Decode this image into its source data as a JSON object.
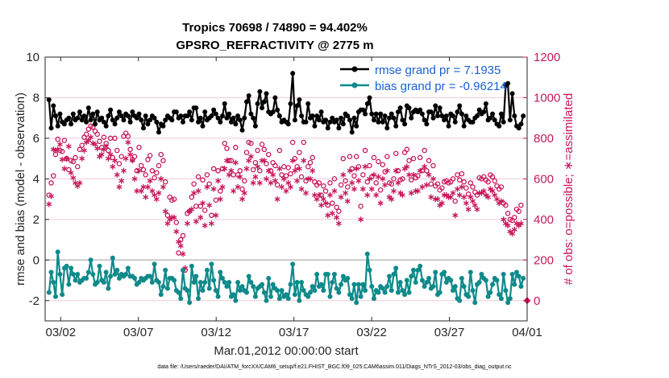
{
  "chart_data": {
    "type": "line",
    "title": "Tropics 70698 / 74890 = 94.402%",
    "subtitle": "GPSRO_REFRACTIVITY @ 2775 m",
    "xlabel": "Mar.01,2012 00:00:00 start",
    "ylabel": "rmse and bias (model - observation)",
    "y2label": "# of obs: o=possible; ∗=assimilated",
    "footnote": "data file: /Users/raeder/DAI/ATM_forcXX/CAM6_setup/f.e21.FHIST_BGC.f09_025.CAM6assim.011/Diags_NTrS_2012-03/obs_diag_output.nc",
    "xlim": [
      0,
      31
    ],
    "ylim": [
      -3,
      10
    ],
    "y2lim": [
      -100,
      1200
    ],
    "x_tick_positions": [
      1,
      6,
      11,
      16,
      21,
      26,
      31
    ],
    "x_tick_labels": [
      "03/02",
      "03/07",
      "03/12",
      "03/17",
      "03/22",
      "03/27",
      "04/01"
    ],
    "y_ticks": [
      "-2",
      "0",
      "2",
      "4",
      "6",
      "8",
      "10"
    ],
    "y2_ticks": [
      "0",
      "200",
      "400",
      "600",
      "800",
      "1000",
      "1200"
    ],
    "legend": {
      "rmse_label": "rmse grand pr = 7.1935",
      "bias_label": "bias grand pr = -0.96214",
      "position": "top-right"
    },
    "colors": {
      "rmse": "#000000",
      "bias": "#0f8a8a",
      "obs": "#c8175a",
      "zero_line": "#bdbdbd",
      "grid": "#f3c9d6"
    },
    "series": [
      {
        "name": "rmse",
        "axis": "left",
        "values": [
          7.9,
          6.5,
          7.6,
          7.1,
          6.6,
          7.2,
          6.8,
          6.7,
          6.9,
          7.0,
          6.7,
          7.2,
          6.9,
          7.0,
          7.3,
          6.9,
          7.1,
          6.8,
          7.5,
          6.9,
          7.2,
          6.7,
          7.3,
          6.9,
          7.0,
          6.8,
          6.6,
          7.1,
          7.4,
          6.9,
          6.7,
          7.0,
          7.3,
          7.1,
          6.9,
          7.2,
          7.1,
          6.8,
          7.3,
          7.1,
          7.0,
          7.2,
          6.9,
          6.5,
          7.1,
          6.7,
          6.9,
          7.1,
          7.0,
          6.8,
          6.3,
          6.7,
          6.6,
          6.9,
          7.1,
          7.0,
          6.9,
          7.3,
          7.3,
          7.0,
          7.1,
          6.8,
          7.1,
          7.1,
          7.3,
          6.9,
          7.5,
          7.5,
          6.8,
          7.0,
          6.6,
          7.3,
          6.9,
          7.0,
          7.1,
          7.4,
          7.2,
          7.0,
          6.8,
          7.1,
          7.7,
          7.0,
          7.2,
          6.8,
          7.0,
          6.7,
          7.1,
          6.9,
          6.4,
          7.0,
          7.8,
          8.1,
          7.2,
          7.0,
          6.6,
          7.7,
          8.3,
          7.5,
          7.8,
          8.2,
          7.3,
          7.2,
          7.3,
          8.0,
          7.4,
          7.1,
          6.8,
          6.9,
          6.8,
          6.7,
          7.7,
          9.2,
          6.9,
          7.6,
          7.9,
          7.1,
          6.8,
          6.8,
          7.7,
          7.0,
          7.1,
          6.6,
          7.1,
          6.9,
          7.3,
          6.8,
          6.9,
          6.5,
          6.8,
          7.0,
          6.8,
          6.9,
          6.5,
          7.0,
          6.7,
          7.2,
          7.1,
          6.9,
          6.3,
          7.0,
          6.6,
          7.3,
          7.4,
          7.4,
          7.2,
          7.7,
          8.0,
          7.2,
          6.9,
          7.2,
          6.8,
          7.2,
          6.8,
          7.1,
          6.5,
          7.0,
          7.2,
          7.0,
          6.6,
          7.3,
          7.5,
          6.9,
          6.7,
          7.6,
          7.5,
          7.0,
          7.3,
          7.4,
          7.3,
          7.4,
          7.2,
          6.9,
          6.7,
          7.3,
          7.3,
          7.0,
          7.6,
          7.1,
          7.5,
          7.1,
          6.9,
          7.1,
          6.6,
          7.2,
          7.1,
          6.8,
          7.3,
          7.6,
          7.2,
          6.6,
          7.1,
          6.9,
          6.8,
          6.8,
          7.0,
          7.1,
          7.4,
          7.2,
          7.3,
          7.7,
          6.9,
          7.0,
          7.2,
          6.9,
          6.7,
          6.6,
          7.2,
          6.8,
          8.6,
          8.7,
          6.9,
          8.2,
          7.1,
          6.6,
          6.5,
          6.7,
          7.1
        ]
      },
      {
        "name": "bias",
        "axis": "left",
        "values": [
          -1.6,
          -0.6,
          -1.1,
          -1.8,
          0.4,
          -0.7,
          -1.7,
          -0.4,
          -0.3,
          -1.2,
          -0.4,
          -0.7,
          -1.0,
          -0.7,
          -1.1,
          -1.0,
          -0.9,
          -0.9,
          -0.6,
          0.0,
          -0.7,
          -1.2,
          -1.1,
          -0.3,
          -1.0,
          -1.1,
          -0.6,
          -1.4,
          -0.8,
          0.1,
          -0.7,
          -0.5,
          -0.9,
          -0.7,
          -0.8,
          -0.7,
          -0.4,
          -0.8,
          -0.8,
          -0.9,
          -1.2,
          -1.1,
          -0.9,
          -1.0,
          -0.9,
          -0.8,
          -0.8,
          -1.1,
          -0.2,
          -1.0,
          -1.1,
          -1.7,
          -1.3,
          -0.5,
          -1.4,
          -0.9,
          -0.9,
          -1.0,
          -1.5,
          -1.6,
          -1.9,
          -0.5,
          -1.4,
          -1.5,
          -2.1,
          -0.3,
          -1.1,
          -0.8,
          -1.9,
          -1.1,
          -1.5,
          -1.1,
          -0.5,
          -1.4,
          -0.2,
          -1.0,
          -1.5,
          -1.8,
          -0.6,
          -0.9,
          -1.1,
          -1.3,
          -1.1,
          -1.8,
          -1.7,
          -2.0,
          -1.1,
          -1.5,
          -1.3,
          -1.5,
          -1.6,
          -0.8,
          -1.1,
          -1.3,
          -1.8,
          -1.4,
          -1.3,
          -1.2,
          -1.6,
          -2.0,
          -0.9,
          -1.8,
          -1.2,
          -1.4,
          -1.5,
          -1.9,
          -1.5,
          -1.8,
          -1.7,
          -1.9,
          -1.2,
          -0.2,
          -1.7,
          -1.1,
          -2.0,
          -1.1,
          -1.5,
          -1.7,
          -1.8,
          -1.6,
          -1.3,
          -1.5,
          -0.7,
          -1.3,
          -1.2,
          -1.5,
          -0.7,
          -0.7,
          -1.8,
          -1.1,
          -0.7,
          -1.4,
          -1.6,
          -1.2,
          -0.8,
          -1.0,
          -0.9,
          -1.7,
          -1.9,
          -1.2,
          -2.1,
          -1.2,
          -1.8,
          -1.2,
          -1.5,
          0.3,
          -0.5,
          -1.3,
          -1.9,
          -1.5,
          -1.6,
          -1.3,
          -1.4,
          -1.6,
          -1.3,
          -0.8,
          -1.5,
          -0.7,
          -0.4,
          -1.6,
          -1.1,
          -1.5,
          -1.7,
          -1.0,
          -1.6,
          -0.8,
          -0.5,
          -1.1,
          -0.5,
          -0.3,
          -1.0,
          -1.3,
          -1.1,
          -0.9,
          -1.4,
          -1.3,
          -0.6,
          -1.7,
          -1.6,
          -0.7,
          -0.6,
          -1.1,
          -0.9,
          -1.0,
          -1.5,
          -1.3,
          -1.9,
          -2.0,
          -0.9,
          -1.3,
          -1.7,
          -1.8,
          -0.6,
          -1.5,
          -2.1,
          -1.2,
          -1.1,
          -0.7,
          -0.9,
          -1.0,
          -1.8,
          -1.6,
          -1.2,
          -0.9,
          -1.0,
          -1.7,
          -1.9,
          -0.7,
          -1.5,
          -2.1,
          -1.9,
          -0.7,
          -1.2,
          -0.6,
          -0.8,
          -1.3,
          -0.9
        ]
      },
      {
        "name": "# obs possible (o)",
        "axis": "right",
        "values": [
          520,
          580,
          615,
          720,
          795,
          740,
          735,
          790,
          700,
          645,
          690,
          685,
          705,
          660,
          745,
          765,
          805,
          820,
          845,
          860,
          855,
          835,
          820,
          785,
          755,
          805,
          775,
          740,
          800,
          705,
          800,
          740,
          675,
          710,
          810,
          825,
          810,
          745,
          695,
          710,
          640,
          755,
          665,
          645,
          620,
          695,
          715,
          640,
          605,
          630,
          665,
          720,
          690,
          585,
          420,
          510,
          495,
          500,
          385,
          235,
          300,
          320,
          150,
          430,
          440,
          510,
          575,
          465,
          610,
          465,
          595,
          445,
          620,
          575,
          420,
          650,
          495,
          640,
          540,
          650,
          775,
          750,
          690,
          690,
          620,
          755,
          620,
          640,
          550,
          590,
          730,
          780,
          775,
          645,
          680,
          740,
          640,
          770,
          745,
          675,
          720,
          640,
          680,
          665,
          570,
          740,
          620,
          660,
          615,
          655,
          625,
          780,
          700,
          660,
          730,
          610,
          780,
          590,
          660,
          680,
          705,
          585,
          570,
          580,
          520,
          565,
          540,
          470,
          580,
          480,
          600,
          460,
          440,
          570,
          700,
          590,
          560,
          710,
          650,
          615,
          710,
          660,
          465,
          620,
          740,
          585,
          665,
          610,
          705,
          580,
          685,
          545,
          670,
          635,
          710,
          580,
          575,
          600,
          725,
          640,
          595,
          600,
          730,
          745,
          690,
          595,
          700,
          605,
          615,
          705,
          640,
          740,
          640,
          690,
          575,
          665,
          565,
          575,
          545,
          555,
          585,
          590,
          580,
          585,
          600,
          490,
          620,
          595,
          625,
          585,
          555,
          525,
          580,
          560,
          535,
          520,
          605,
          600,
          610,
          595,
          585,
          620,
          610,
          590,
          565,
          550,
          560,
          480,
          470,
          430,
          400,
          395,
          410,
          450,
          440,
          470
        ]
      },
      {
        "name": "# obs assimilated (*)",
        "axis": "right",
        "values": [
          475,
          515,
          745,
          740,
          745,
          770,
          695,
          650,
          700,
          760,
          630,
          605,
          580,
          565,
          580,
          700,
          740,
          780,
          790,
          805,
          775,
          770,
          750,
          710,
          720,
          745,
          760,
          700,
          720,
          660,
          690,
          620,
          560,
          590,
          640,
          700,
          780,
          720,
          690,
          600,
          540,
          640,
          540,
          560,
          510,
          560,
          590,
          540,
          520,
          500,
          530,
          600,
          560,
          440,
          380,
          400,
          410,
          410,
          340,
          290,
          270,
          230,
          160,
          380,
          440,
          450,
          530,
          390,
          540,
          410,
          480,
          370,
          560,
          470,
          380,
          550,
          420,
          590,
          500,
          560,
          650,
          690,
          620,
          640,
          540,
          680,
          560,
          610,
          500,
          530,
          650,
          690,
          710,
          580,
          610,
          660,
          580,
          690,
          690,
          600,
          640,
          580,
          620,
          590,
          500,
          650,
          560,
          600,
          540,
          580,
          560,
          690,
          640,
          590,
          650,
          550,
          690,
          530,
          600,
          600,
          640,
          520,
          500,
          520,
          470,
          500,
          480,
          420,
          520,
          430,
          540,
          410,
          380,
          510,
          620,
          530,
          490,
          640,
          580,
          550,
          650,
          590,
          400,
          550,
          660,
          520,
          600,
          550,
          620,
          520,
          610,
          480,
          600,
          570,
          640,
          510,
          500,
          540,
          640,
          580,
          530,
          520,
          650,
          660,
          620,
          530,
          620,
          540,
          540,
          640,
          560,
          660,
          570,
          620,
          510,
          600,
          500,
          500,
          470,
          480,
          520,
          520,
          510,
          510,
          530,
          420,
          550,
          520,
          560,
          510,
          480,
          450,
          510,
          490,
          470,
          450,
          530,
          530,
          540,
          520,
          510,
          550,
          540,
          520,
          500,
          480,
          490,
          400,
          380,
          370,
          340,
          330,
          350,
          380,
          370,
          380
        ]
      }
    ]
  }
}
